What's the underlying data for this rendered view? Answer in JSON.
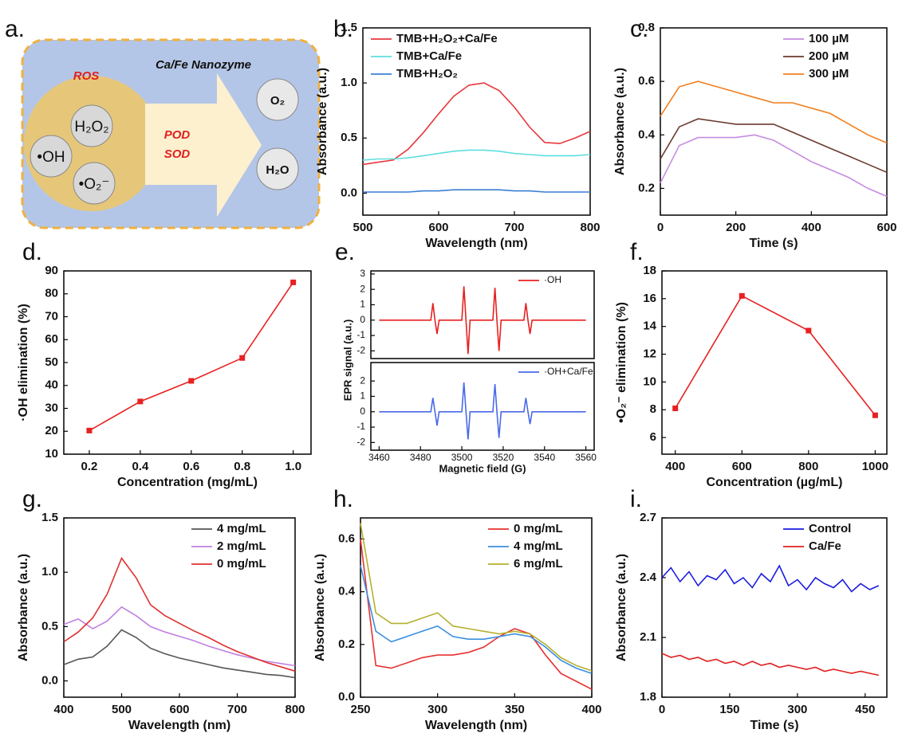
{
  "diagram": {
    "panel_label": "a.",
    "title": "Ca/Fe Nanozyme",
    "ros": "ROS",
    "h2o2": "H₂O₂",
    "oh": "•OH",
    "o2minus": "•O₂⁻",
    "pod": "POD",
    "sod": "SOD",
    "o2": "O₂",
    "h2o": "H₂O"
  },
  "chart_data": [
    {
      "type": "line",
      "panel_label": "b.",
      "xlabel": "Wavelength (nm)",
      "ylabel": "Absorbance (a.u.)",
      "legend": "upper left",
      "x": [
        500,
        520,
        540,
        560,
        580,
        600,
        620,
        640,
        660,
        680,
        700,
        720,
        740,
        760,
        780,
        800
      ],
      "series": [
        {
          "name": "TMB+H₂O₂+Ca/Fe",
          "color": "#e8383d",
          "values": [
            0.26,
            0.28,
            0.3,
            0.4,
            0.55,
            0.72,
            0.88,
            0.98,
            1.0,
            0.93,
            0.78,
            0.6,
            0.46,
            0.45,
            0.5,
            0.56
          ]
        },
        {
          "name": "TMB+Ca/Fe",
          "color": "#5fdede",
          "values": [
            0.3,
            0.31,
            0.31,
            0.32,
            0.34,
            0.36,
            0.38,
            0.39,
            0.39,
            0.38,
            0.36,
            0.35,
            0.34,
            0.34,
            0.34,
            0.35
          ]
        },
        {
          "name": "TMB+H₂O₂",
          "color": "#3a7fd5",
          "values": [
            0.01,
            0.01,
            0.01,
            0.01,
            0.02,
            0.02,
            0.03,
            0.03,
            0.03,
            0.03,
            0.02,
            0.02,
            0.01,
            0.01,
            0.01,
            0.01
          ]
        }
      ],
      "xlim": [
        500,
        800
      ],
      "ylim": [
        -0.2,
        1.5
      ],
      "xticks": [
        500,
        600,
        700,
        800
      ],
      "yticks": [
        {
          "value": 0,
          "label": "0.0"
        },
        0.5,
        {
          "value": 1,
          "label": "1.0"
        },
        1.5
      ]
    },
    {
      "type": "line",
      "panel_label": "c.",
      "xlabel": "Time (s)",
      "ylabel": "Absorbance (a.u.)",
      "legend": "upper right",
      "x": [
        0,
        50,
        100,
        150,
        200,
        250,
        300,
        350,
        400,
        450,
        500,
        550,
        600
      ],
      "series": [
        {
          "name": "100 µM",
          "color": "#c58ce0",
          "values": [
            0.22,
            0.36,
            0.39,
            0.39,
            0.39,
            0.4,
            0.38,
            0.34,
            0.3,
            0.27,
            0.24,
            0.2,
            0.17
          ]
        },
        {
          "name": "200 µM",
          "color": "#6b3a2e",
          "values": [
            0.31,
            0.43,
            0.46,
            0.45,
            0.44,
            0.44,
            0.44,
            0.41,
            0.38,
            0.35,
            0.32,
            0.29,
            0.26
          ]
        },
        {
          "name": "300 µM",
          "color": "#f07f1f",
          "values": [
            0.47,
            0.58,
            0.6,
            0.58,
            0.56,
            0.54,
            0.52,
            0.52,
            0.5,
            0.48,
            0.44,
            0.4,
            0.37
          ]
        }
      ],
      "xlim": [
        0,
        600
      ],
      "ylim": [
        0.1,
        0.8
      ],
      "xticks": [
        0,
        200,
        400,
        600
      ],
      "yticks": [
        0.2,
        0.4,
        0.6,
        0.8
      ]
    },
    {
      "type": "line",
      "panel_label": "d.",
      "xlabel": "Concentration (mg/mL)",
      "ylabel": "·OH elimination (%)",
      "markers": true,
      "x": [
        0.2,
        0.4,
        0.6,
        0.8,
        1.0
      ],
      "series": [
        {
          "color": "#e82020",
          "values": [
            20.3,
            33,
            42,
            52,
            85
          ]
        }
      ],
      "xlim": [
        0.1,
        1.07
      ],
      "ylim": [
        10,
        90
      ],
      "xticks": [
        0.2,
        0.4,
        0.6,
        0.8,
        {
          "value": 1,
          "label": "1.0"
        }
      ],
      "yticks": [
        10,
        20,
        30,
        40,
        50,
        60,
        70,
        80,
        90
      ]
    },
    {
      "type": "line",
      "panel_label": "e.",
      "ylabel": "EPR signal (a.u.)",
      "legend": "upper right",
      "x": [
        3460,
        3485,
        3486,
        3487,
        3488,
        3489,
        3500,
        3501,
        3502,
        3503,
        3504,
        3515,
        3516,
        3517,
        3518,
        3519,
        3530,
        3531,
        3532,
        3533,
        3534,
        3560
      ],
      "series": [
        {
          "name": "·OH",
          "color": "#e82020",
          "values": [
            0,
            0,
            1.1,
            0,
            -0.9,
            0,
            0,
            2.2,
            0,
            -2.2,
            0,
            0,
            2.1,
            0,
            -2.0,
            0,
            0,
            1.1,
            0,
            -0.9,
            0,
            0
          ]
        }
      ],
      "xlim": [
        3456,
        3564
      ],
      "ylim": [
        -2.5,
        3.2
      ],
      "yticks": [
        -2,
        -1,
        0,
        1,
        2,
        3
      ]
    },
    {
      "type": "line",
      "xlabel": "Magnetic field (G)",
      "legend": "upper right",
      "x": [
        3460,
        3485,
        3486,
        3487,
        3488,
        3489,
        3500,
        3501,
        3502,
        3503,
        3504,
        3515,
        3516,
        3517,
        3518,
        3519,
        3530,
        3531,
        3532,
        3533,
        3534,
        3560
      ],
      "series": [
        {
          "name": "·OH+Ca/Fe",
          "color": "#4a6ae8",
          "values": [
            0,
            0,
            0.9,
            0,
            -0.9,
            0,
            0,
            1.9,
            0,
            -1.8,
            0,
            0,
            1.8,
            0,
            -1.7,
            0,
            0,
            0.9,
            0,
            -0.8,
            0,
            0
          ]
        }
      ],
      "xlim": [
        3456,
        3564
      ],
      "ylim": [
        -2.5,
        3.2
      ],
      "xticks": [
        3460,
        3480,
        3500,
        3520,
        3540,
        3560
      ],
      "yticks": [
        -2,
        -1,
        0,
        1,
        2
      ]
    },
    {
      "type": "line",
      "panel_label": "f.",
      "xlabel": "Concentration (µg/mL)",
      "ylabel": "•O₂⁻ elimination (%)",
      "markers": true,
      "x": [
        400,
        600,
        800,
        1000
      ],
      "series": [
        {
          "color": "#e82020",
          "values": [
            8.1,
            16.2,
            13.7,
            7.6
          ]
        }
      ],
      "xlim": [
        360,
        1035
      ],
      "ylim": [
        4.8,
        18
      ],
      "xticks": [
        400,
        600,
        800,
        1000
      ],
      "yticks": [
        6,
        8,
        10,
        12,
        14,
        16,
        18
      ]
    },
    {
      "type": "line",
      "panel_label": "g.",
      "xlabel": "Wavelength (nm)",
      "ylabel": "Absorbance (a.u.)",
      "legend": "upper right",
      "x": [
        400,
        425,
        450,
        475,
        500,
        525,
        550,
        575,
        600,
        625,
        650,
        675,
        700,
        725,
        750,
        775,
        800
      ],
      "series": [
        {
          "name": "4 mg/mL",
          "color": "#555555",
          "values": [
            0.15,
            0.2,
            0.22,
            0.32,
            0.47,
            0.4,
            0.3,
            0.25,
            0.21,
            0.18,
            0.15,
            0.12,
            0.1,
            0.08,
            0.06,
            0.05,
            0.03
          ]
        },
        {
          "name": "2 mg/mL",
          "color": "#c080e0",
          "values": [
            0.52,
            0.57,
            0.48,
            0.55,
            0.68,
            0.6,
            0.5,
            0.45,
            0.41,
            0.37,
            0.32,
            0.28,
            0.24,
            0.21,
            0.18,
            0.16,
            0.14
          ]
        },
        {
          "name": "0 mg/mL",
          "color": "#e03030",
          "values": [
            0.36,
            0.45,
            0.58,
            0.8,
            1.13,
            0.95,
            0.7,
            0.6,
            0.53,
            0.46,
            0.4,
            0.33,
            0.27,
            0.22,
            0.17,
            0.13,
            0.09
          ]
        }
      ],
      "xlim": [
        400,
        800
      ],
      "ylim": [
        -0.15,
        1.5
      ],
      "xticks": [
        400,
        500,
        600,
        700,
        800
      ],
      "yticks": [
        {
          "value": 0,
          "label": "0.0"
        },
        0.5,
        {
          "value": 1,
          "label": "1.0"
        },
        1.5
      ]
    },
    {
      "type": "line",
      "panel_label": "h.",
      "xlabel": "Wavelength (nm)",
      "ylabel": "Absorbance (a.u.)",
      "legend": "upper right",
      "x": [
        250,
        260,
        270,
        280,
        290,
        300,
        310,
        320,
        330,
        340,
        350,
        360,
        370,
        380,
        390,
        400
      ],
      "series": [
        {
          "name": "0 mg/mL",
          "color": "#e83030",
          "values": [
            0.6,
            0.12,
            0.11,
            0.13,
            0.15,
            0.16,
            0.16,
            0.17,
            0.19,
            0.23,
            0.26,
            0.24,
            0.16,
            0.09,
            0.06,
            0.03
          ]
        },
        {
          "name": "4 mg/mL",
          "color": "#3a8fe0",
          "values": [
            0.5,
            0.25,
            0.21,
            0.23,
            0.25,
            0.27,
            0.23,
            0.22,
            0.22,
            0.23,
            0.24,
            0.23,
            0.19,
            0.14,
            0.11,
            0.09
          ]
        },
        {
          "name": "6 mg/mL",
          "color": "#b5b030",
          "values": [
            0.66,
            0.32,
            0.28,
            0.28,
            0.3,
            0.32,
            0.27,
            0.26,
            0.25,
            0.24,
            0.25,
            0.24,
            0.2,
            0.15,
            0.12,
            0.1
          ]
        }
      ],
      "xlim": [
        250,
        400
      ],
      "ylim": [
        0,
        0.68
      ],
      "xticks": [
        250,
        300,
        350,
        400
      ],
      "yticks": [
        {
          "value": 0,
          "label": "0.0"
        },
        0.2,
        0.4,
        0.6
      ]
    },
    {
      "type": "line",
      "panel_label": "i.",
      "xlabel": "Time (s)",
      "ylabel": "Absorbance (a.u.)",
      "legend": "upper right",
      "x": [
        0,
        20,
        40,
        60,
        80,
        100,
        120,
        140,
        160,
        180,
        200,
        220,
        240,
        260,
        280,
        300,
        320,
        340,
        360,
        380,
        400,
        420,
        440,
        460,
        480
      ],
      "series": [
        {
          "name": "Control",
          "color": "#1a1ae0",
          "values": [
            2.4,
            2.45,
            2.38,
            2.43,
            2.36,
            2.41,
            2.39,
            2.44,
            2.37,
            2.4,
            2.35,
            2.42,
            2.38,
            2.46,
            2.36,
            2.39,
            2.34,
            2.4,
            2.37,
            2.35,
            2.39,
            2.33,
            2.37,
            2.34,
            2.36
          ]
        },
        {
          "name": "Ca/Fe",
          "color": "#e02020",
          "values": [
            2.02,
            2.0,
            2.01,
            1.99,
            2.0,
            1.98,
            1.99,
            1.97,
            1.98,
            1.96,
            1.98,
            1.96,
            1.97,
            1.95,
            1.96,
            1.95,
            1.94,
            1.95,
            1.93,
            1.94,
            1.93,
            1.92,
            1.93,
            1.92,
            1.91
          ]
        }
      ],
      "xlim": [
        0,
        498
      ],
      "ylim": [
        1.8,
        2.7
      ],
      "xticks": [
        0,
        150,
        300,
        450
      ],
      "yticks": [
        1.8,
        2.1,
        2.4,
        2.7
      ]
    }
  ]
}
